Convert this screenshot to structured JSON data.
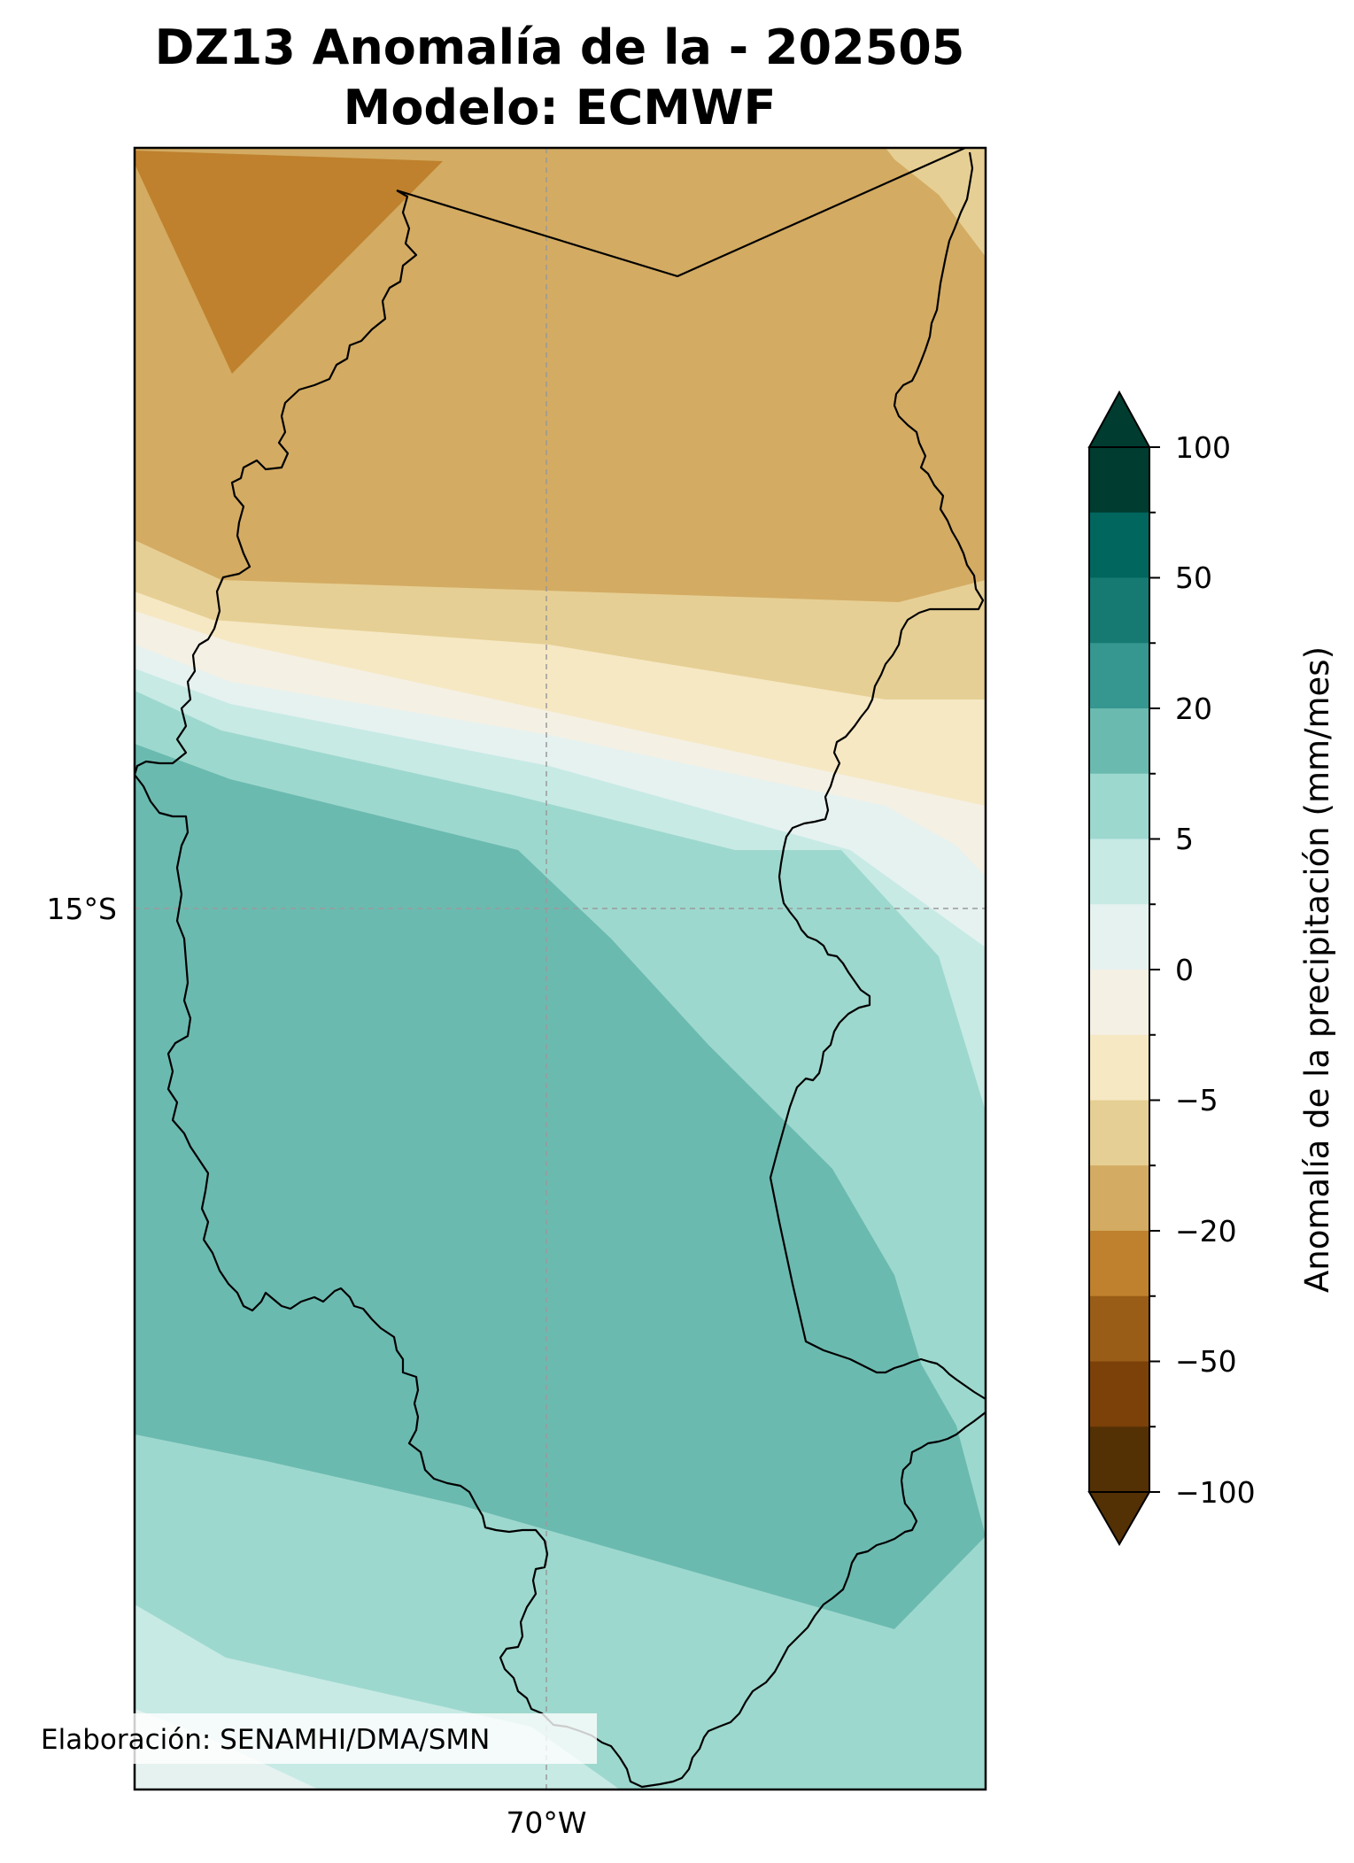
{
  "title": {
    "line1": "DZ13 Anomalía de la - 202505",
    "line2": "Modelo: ECMWF"
  },
  "map": {
    "lat_labels": [
      "15°S"
    ],
    "lon_labels": [
      "70°W"
    ]
  },
  "colorbar": {
    "label": "Anomalía de la precipitación (mm/mes)",
    "tick_labels": [
      "100",
      "50",
      "20",
      "5",
      "0",
      "−5",
      "−20",
      "−50",
      "−100"
    ],
    "colors_top_to_bottom": [
      "#003c30",
      "#01665e",
      "#167a72",
      "#35978f",
      "#6bbab0",
      "#9dd8ce",
      "#c7eae5",
      "#e6f2f0",
      "#f4f0e4",
      "#f6e8c3",
      "#e6cf94",
      "#d3ab62",
      "#bf812d",
      "#9a5d17",
      "#7b4109",
      "#543005"
    ]
  },
  "anomaly_fill_colors": {
    "strong_dry": "#bf812d",
    "moderate_dry": "#d3ab62",
    "light_dry": "#e6cf94",
    "very_light_dry": "#f6e8c3",
    "near_zero_dry": "#f4f0e4",
    "near_zero_wet": "#e6f2f0",
    "light_wet": "#c7eae5",
    "moderate_wet": "#9dd8ce",
    "wet": "#6bbab0"
  },
  "credit": "Elaboración: SENAMHI/DMA/SMN"
}
